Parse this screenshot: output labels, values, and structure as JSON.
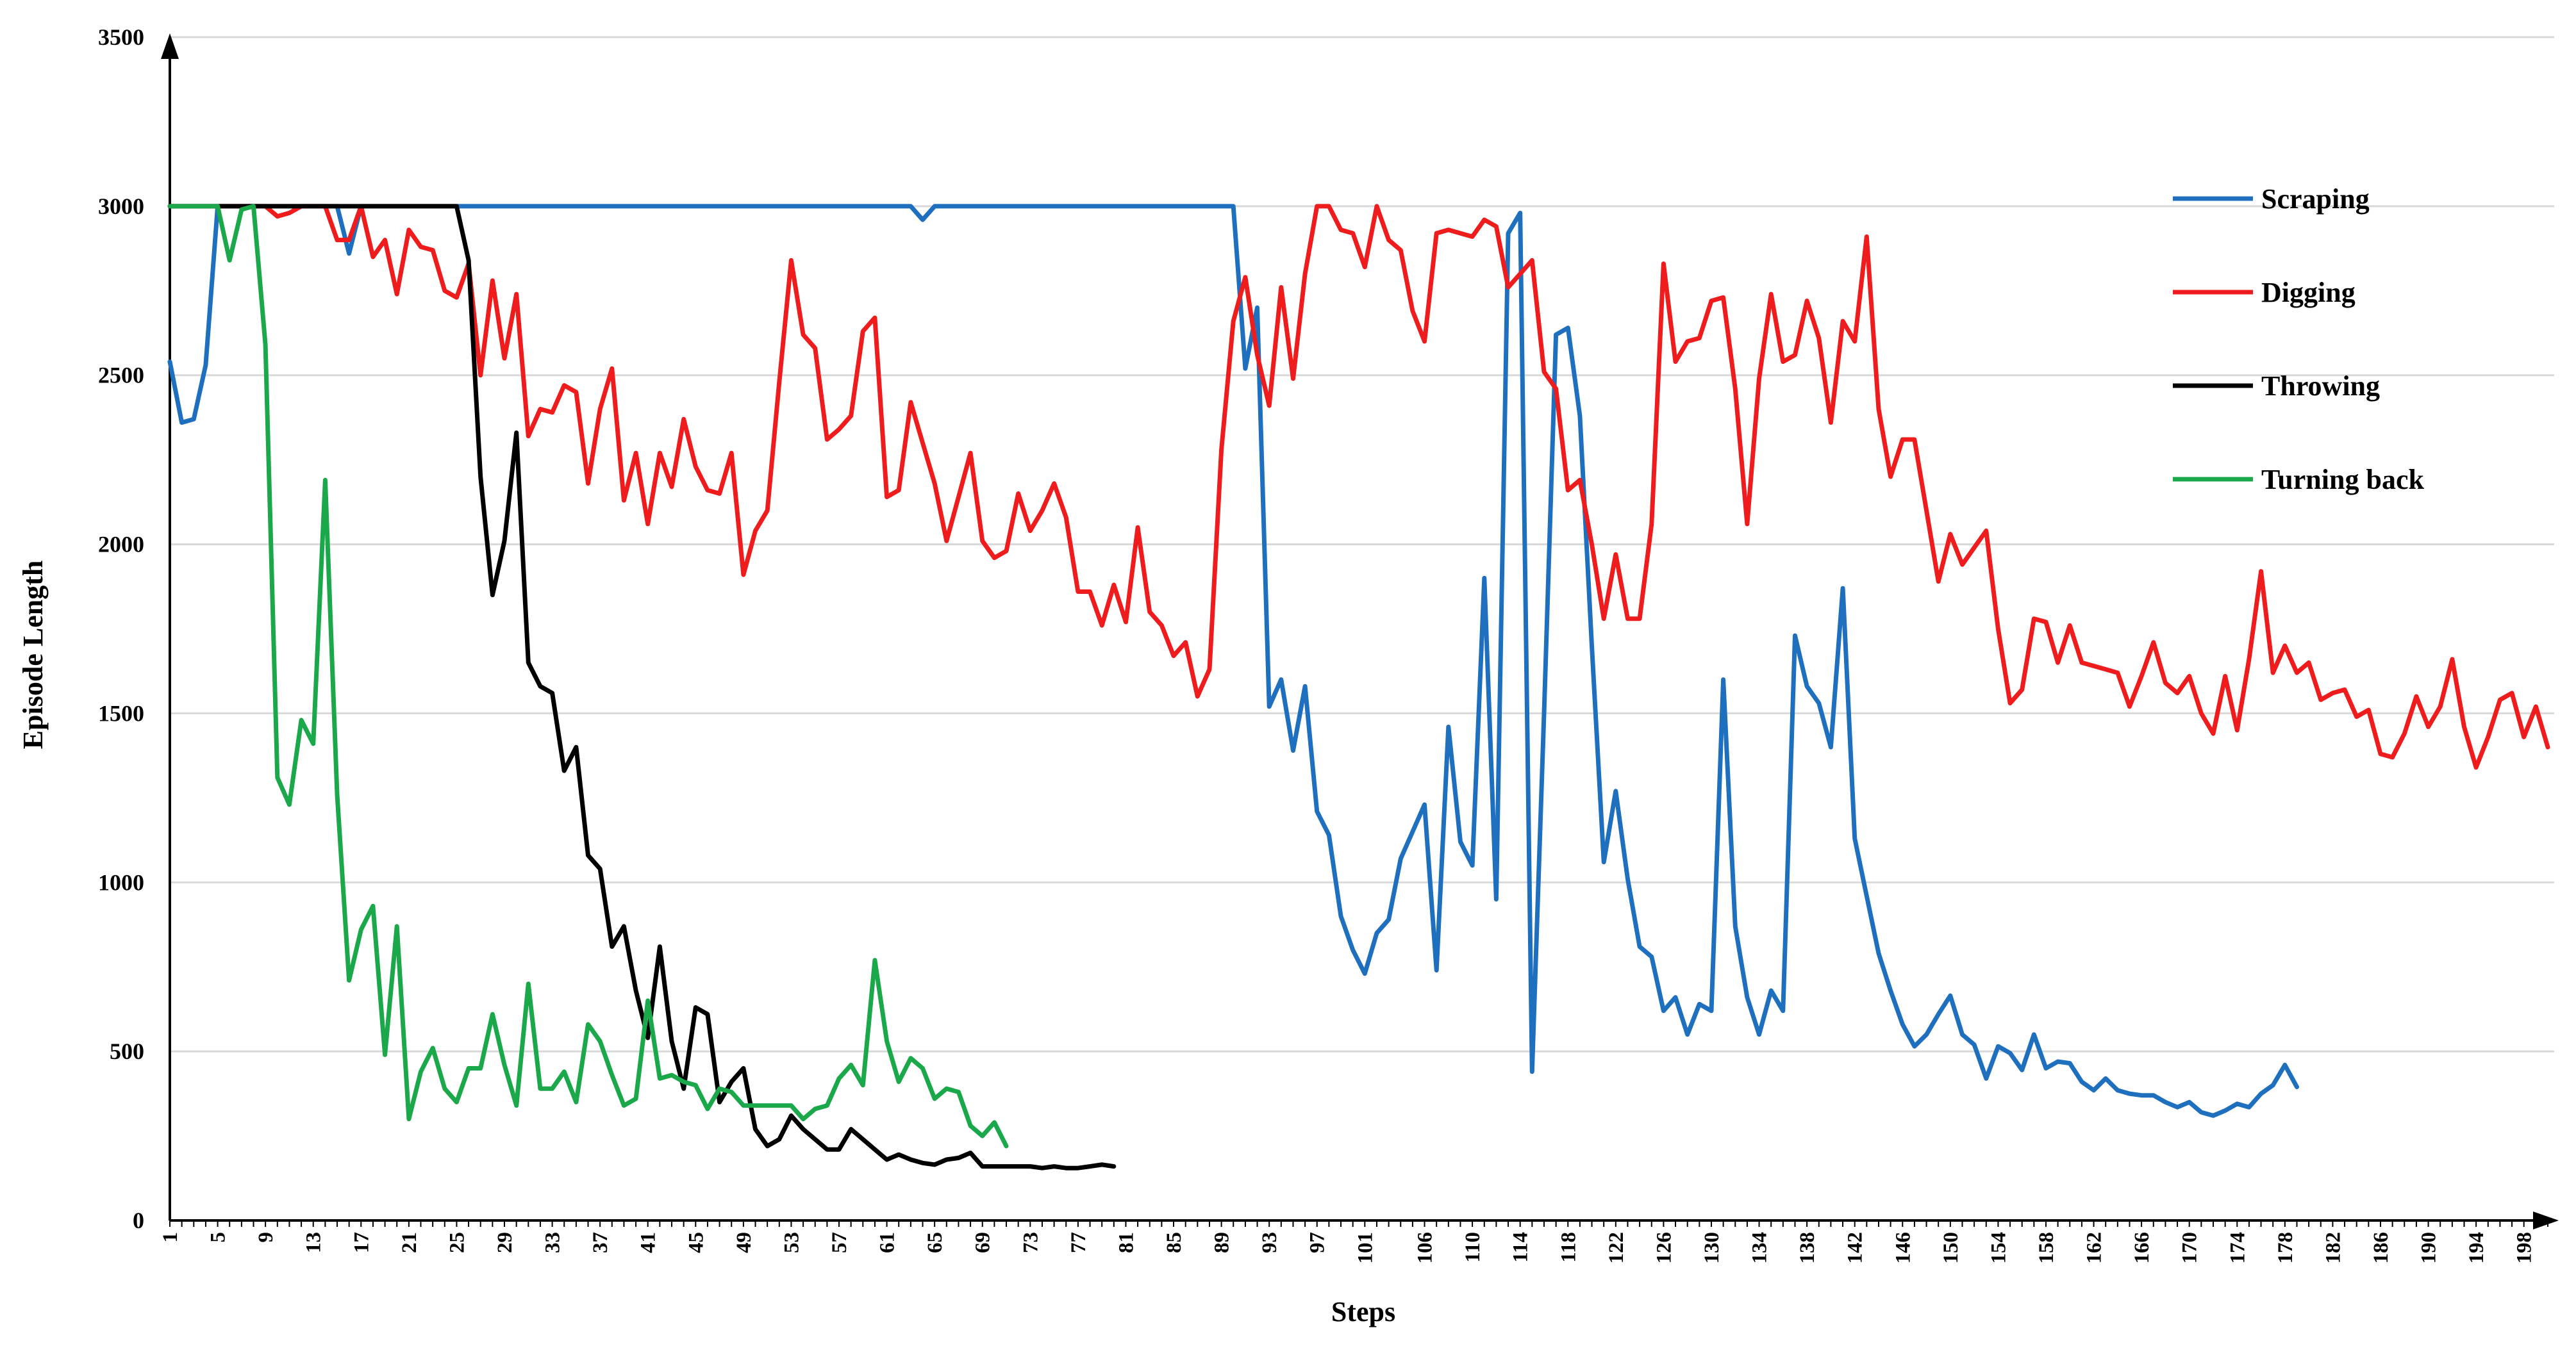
{
  "chart_data": {
    "type": "line",
    "xlabel": "Steps",
    "ylabel": "Episode Length",
    "xlim": [
      1,
      200
    ],
    "ylim": [
      0,
      3500
    ],
    "y_ticks": [
      0,
      500,
      1000,
      1500,
      2000,
      2500,
      3000,
      3500
    ],
    "x_tick_labels": [
      1,
      5,
      9,
      13,
      17,
      21,
      25,
      29,
      33,
      37,
      41,
      45,
      49,
      53,
      57,
      61,
      65,
      69,
      73,
      77,
      81,
      85,
      89,
      93,
      97,
      101,
      106,
      110,
      114,
      118,
      122,
      126,
      130,
      134,
      138,
      142,
      146,
      150,
      154,
      158,
      162,
      166,
      170,
      174,
      178,
      182,
      186,
      190,
      194,
      198
    ],
    "grid": "horizontal",
    "legend_position": "right",
    "series": [
      {
        "name": "Scraping",
        "color": "#1f6fbf",
        "values": [
          2540,
          2360,
          2370,
          2530,
          3000,
          3000,
          3000,
          3000,
          3000,
          3000,
          3000,
          3000,
          3000,
          3000,
          3000,
          2860,
          3000,
          3000,
          3000,
          3000,
          3000,
          3000,
          3000,
          3000,
          3000,
          3000,
          3000,
          3000,
          3000,
          3000,
          3000,
          3000,
          3000,
          3000,
          3000,
          3000,
          3000,
          3000,
          3000,
          3000,
          3000,
          3000,
          3000,
          3000,
          3000,
          3000,
          3000,
          3000,
          3000,
          3000,
          3000,
          3000,
          3000,
          3000,
          3000,
          3000,
          3000,
          3000,
          3000,
          3000,
          3000,
          3000,
          3000,
          2960,
          3000,
          3000,
          3000,
          3000,
          3000,
          3000,
          3000,
          3000,
          3000,
          3000,
          3000,
          3000,
          3000,
          3000,
          3000,
          3000,
          3000,
          3000,
          3000,
          3000,
          3000,
          3000,
          3000,
          3000,
          3000,
          3000,
          2520,
          2700,
          1520,
          1600,
          1390,
          1580,
          1210,
          1140,
          900,
          800,
          730,
          850,
          890,
          1070,
          1150,
          1230,
          740,
          1460,
          1120,
          1050,
          1900,
          950,
          2920,
          2980,
          440,
          1500,
          2620,
          2640,
          2380,
          1700,
          1060,
          1270,
          1010,
          810,
          780,
          620,
          660,
          550,
          640,
          620,
          1600,
          870,
          660,
          550,
          680,
          620,
          1730,
          1580,
          1530,
          1400,
          1870,
          1130,
          960,
          790,
          680,
          580,
          515,
          550,
          610,
          665,
          550,
          520,
          420,
          515,
          495,
          445,
          550,
          450,
          470,
          465,
          410,
          385,
          420,
          385,
          375,
          370,
          370,
          350,
          335,
          350,
          320,
          310,
          325,
          345,
          335,
          375,
          400,
          460,
          395
        ]
      },
      {
        "name": "Digging",
        "color": "#ee1c1c",
        "values": [
          3000,
          3000,
          3000,
          3000,
          3000,
          3000,
          3000,
          3000,
          3000,
          2970,
          2980,
          3000,
          3000,
          3000,
          2900,
          2900,
          3000,
          2850,
          2900,
          2740,
          2930,
          2880,
          2870,
          2750,
          2730,
          2830,
          2500,
          2780,
          2550,
          2740,
          2320,
          2400,
          2390,
          2470,
          2450,
          2180,
          2400,
          2520,
          2130,
          2270,
          2060,
          2270,
          2170,
          2370,
          2230,
          2160,
          2150,
          2270,
          1910,
          2040,
          2100,
          2480,
          2840,
          2620,
          2580,
          2310,
          2340,
          2380,
          2630,
          2670,
          2140,
          2160,
          2420,
          2300,
          2180,
          2010,
          2140,
          2270,
          2010,
          1960,
          1980,
          2150,
          2040,
          2100,
          2180,
          2080,
          1860,
          1860,
          1760,
          1880,
          1770,
          2050,
          1800,
          1760,
          1670,
          1710,
          1550,
          1630,
          2280,
          2660,
          2790,
          2560,
          2410,
          2760,
          2490,
          2800,
          3000,
          3000,
          2930,
          2920,
          2820,
          3000,
          2900,
          2870,
          2690,
          2600,
          2920,
          2930,
          2920,
          2910,
          2960,
          2940,
          2760,
          2800,
          2840,
          2510,
          2460,
          2160,
          2190,
          2000,
          1780,
          1970,
          1780,
          1780,
          2060,
          2830,
          2540,
          2600,
          2610,
          2720,
          2730,
          2460,
          2060,
          2490,
          2740,
          2540,
          2560,
          2720,
          2610,
          2360,
          2660,
          2600,
          2910,
          2400,
          2200,
          2310,
          2310,
          2100,
          1890,
          2030,
          1940,
          1990,
          2040,
          1750,
          1530,
          1570,
          1780,
          1770,
          1650,
          1760,
          1650,
          1640,
          1630,
          1620,
          1520,
          1610,
          1710,
          1590,
          1560,
          1610,
          1500,
          1440,
          1610,
          1450,
          1660,
          1920,
          1620,
          1700,
          1620,
          1650,
          1540,
          1560,
          1570,
          1490,
          1510,
          1380,
          1370,
          1440,
          1550,
          1460,
          1520,
          1660,
          1460,
          1340,
          1430,
          1540,
          1560,
          1430,
          1520,
          1400
        ]
      },
      {
        "name": "Throwing",
        "color": "#000000",
        "values": [
          3000,
          3000,
          3000,
          3000,
          3000,
          3000,
          3000,
          3000,
          3000,
          3000,
          3000,
          3000,
          3000,
          3000,
          3000,
          3000,
          3000,
          3000,
          3000,
          3000,
          3000,
          3000,
          3000,
          3000,
          3000,
          2840,
          2200,
          1850,
          2010,
          2330,
          1650,
          1580,
          1560,
          1330,
          1400,
          1080,
          1040,
          810,
          870,
          680,
          540,
          810,
          530,
          390,
          630,
          610,
          350,
          410,
          450,
          270,
          220,
          240,
          310,
          270,
          240,
          210,
          210,
          270,
          240,
          210,
          180,
          195,
          180,
          170,
          165,
          180,
          185,
          200,
          160,
          160,
          160,
          160,
          160,
          155,
          160,
          155,
          155,
          160,
          165,
          160
        ]
      },
      {
        "name": "Turning back",
        "color": "#1aa84a",
        "values": [
          3000,
          3000,
          3000,
          3000,
          3000,
          2840,
          2990,
          3000,
          2590,
          1310,
          1230,
          1480,
          1410,
          2190,
          1260,
          710,
          860,
          930,
          490,
          870,
          300,
          440,
          510,
          390,
          350,
          450,
          450,
          610,
          460,
          340,
          700,
          390,
          390,
          440,
          350,
          580,
          530,
          430,
          340,
          360,
          650,
          420,
          430,
          410,
          400,
          330,
          390,
          380,
          340,
          340,
          340,
          340,
          340,
          300,
          330,
          340,
          420,
          460,
          400,
          770,
          530,
          410,
          480,
          450,
          360,
          390,
          380,
          280,
          250,
          290,
          220
        ]
      }
    ]
  }
}
